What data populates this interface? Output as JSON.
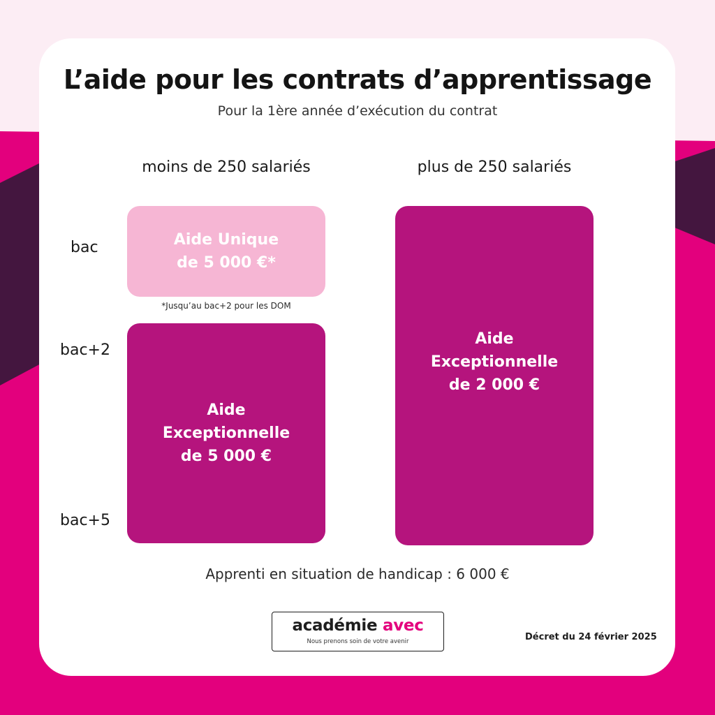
{
  "colors": {
    "background_top": "#fcedf4",
    "accent_pink": "#e3007d",
    "dark_plum": "#44163f",
    "box_light": "#f6b6d4",
    "box_dark": "#b5147d"
  },
  "header": {
    "title": "L’aide pour les contrats d’apprentissage",
    "subtitle": "Pour la 1ère année d’exécution du contrat"
  },
  "columns": {
    "small": "moins de 250 salariés",
    "large": "plus de 250 salariés"
  },
  "rows": {
    "bac": "bac",
    "bac2": "bac+2",
    "bac5": "bac+5"
  },
  "boxes": {
    "unique": {
      "line1": "Aide Unique",
      "line2": "de 5 000 €*"
    },
    "exceptional_small": {
      "line1": "Aide",
      "line2": "Exceptionnelle",
      "line3": "de 5 000 €"
    },
    "exceptional_large": {
      "line1": "Aide",
      "line2": "Exceptionnelle",
      "line3": "de 2 000 €"
    }
  },
  "footnote": "*Jusqu’au bac+2 pour les DOM",
  "handicap": "Apprenti en situation de handicap : 6 000 €",
  "logo": {
    "word1": "académie",
    "word2": "avec",
    "tagline": "Nous prenons soin de votre avenir"
  },
  "decree": "Décret du 24 février 2025"
}
